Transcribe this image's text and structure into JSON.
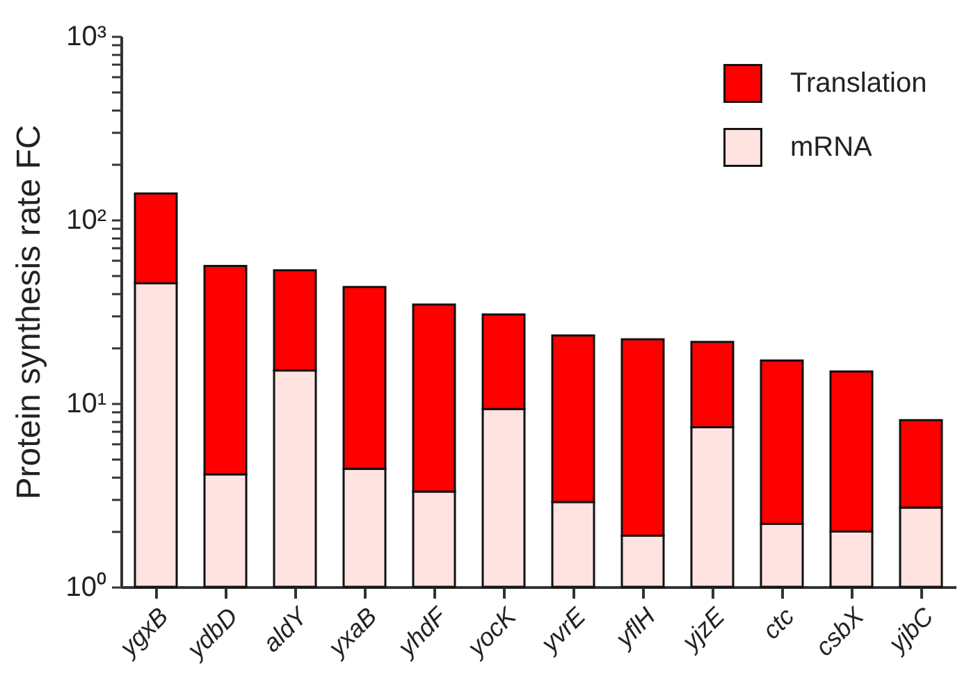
{
  "chart_data": {
    "type": "bar",
    "ylabel": "Protein synthesis rate FC",
    "stacked": true,
    "log": true,
    "legend": "top right",
    "categories": [
      "ygxB",
      "ydbD",
      "aldY",
      "yxaB",
      "yhdF",
      "yocK",
      "yvrE",
      "yflH",
      "yjzE",
      "ctc",
      "csbX",
      "yjbC"
    ],
    "series": [
      {
        "name": "mRNA",
        "color": "#ffe3e1",
        "values": [
          45,
          4.1,
          15.1,
          4.4,
          3.3,
          9.3,
          2.9,
          1.9,
          7.4,
          2.2,
          2.0,
          2.7
        ]
      },
      {
        "name": "Translation",
        "color": "#ff0000",
        "values": [
          94,
          51.9,
          37.9,
          38.6,
          31.2,
          21.2,
          20.5,
          20.4,
          14.2,
          14.9,
          12.9,
          5.4
        ]
      }
    ],
    "ylim": [
      1,
      1000
    ],
    "yticks": [
      {
        "value": 1,
        "label": "10⁰"
      },
      {
        "value": 2,
        "label": null
      },
      {
        "value": 3,
        "label": null
      },
      {
        "value": 4,
        "label": null
      },
      {
        "value": 5,
        "label": null
      },
      {
        "value": 6,
        "label": null
      },
      {
        "value": 7,
        "label": null
      },
      {
        "value": 8,
        "label": null
      },
      {
        "value": 9,
        "label": null
      },
      {
        "value": 10,
        "label": "10¹"
      },
      {
        "value": 20,
        "label": null
      },
      {
        "value": 30,
        "label": null
      },
      {
        "value": 40,
        "label": null
      },
      {
        "value": 50,
        "label": null
      },
      {
        "value": 60,
        "label": null
      },
      {
        "value": 70,
        "label": null
      },
      {
        "value": 80,
        "label": null
      },
      {
        "value": 90,
        "label": null
      },
      {
        "value": 100,
        "label": "10²"
      },
      {
        "value": 200,
        "label": null
      },
      {
        "value": 300,
        "label": null
      },
      {
        "value": 400,
        "label": null
      },
      {
        "value": 500,
        "label": null
      },
      {
        "value": 600,
        "label": null
      },
      {
        "value": 700,
        "label": null
      },
      {
        "value": 800,
        "label": null
      },
      {
        "value": 900,
        "label": null
      },
      {
        "value": 1000,
        "label": "10³"
      }
    ],
    "grid": false
  }
}
